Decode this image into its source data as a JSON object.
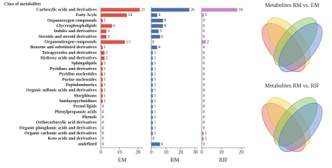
{
  "chart_data": {
    "type": "bar",
    "orientation": "horizontal",
    "legend_title": "Class of metabolites",
    "categories": [
      "Carboxylic acids and derivatives",
      "Fatty Acyls",
      "Organooxygen compounds",
      "Glycerophospholipids",
      "Indoles and derivatives",
      "Steroids and steroid derivatives",
      "Organonitrogen compounds",
      "Benzene and substituted derivatives",
      "Tetrapyrroles and derivatives",
      "Hydroxy acids and derivatives",
      "Sphingolipids",
      "Pyridines and derivatives",
      "Pyridine nucleotides",
      "Purine nucleosides",
      "Peptidomimetics",
      "Organic sulfonic acids and derivatives",
      "Morphinans",
      "Imidazopyrimidines",
      "Prenol lipids",
      "Phenylpropanoic acids",
      "Phenols",
      "Orthocarboxylic acid derivatives",
      "Organic phosphonic acids and derivatives",
      "Organic carbonic acids and derivatives",
      "Keto acids and derivatives",
      "undefined"
    ],
    "series": [
      {
        "name": "EM",
        "color": "#d9534f",
        "xlim": [
          0,
          23
        ],
        "xticks": [
          0,
          10,
          20
        ],
        "values": [
          21,
          14,
          1,
          6,
          3,
          3,
          13,
          1,
          2,
          2,
          1,
          1,
          1,
          1,
          1,
          1,
          1,
          1,
          0,
          0,
          0,
          0,
          0,
          0,
          0,
          0
        ]
      },
      {
        "name": "RM",
        "color": "#4a6fa5",
        "xlim": [
          0,
          32
        ],
        "xticks": [
          0,
          10,
          20,
          30
        ],
        "values": [
          26,
          4,
          8,
          8,
          5,
          6,
          0,
          4,
          1,
          1,
          1,
          1,
          1,
          1,
          1,
          1,
          1,
          1,
          1,
          1,
          1,
          1,
          1,
          1,
          0,
          6
        ]
      },
      {
        "name": "RIF",
        "color": "#c48bc3",
        "xlim": [
          0,
          22
        ],
        "xticks": [
          0,
          10,
          20
        ],
        "values": [
          18,
          1,
          0,
          0,
          0,
          0,
          2,
          0,
          0,
          0,
          0,
          0,
          0,
          0,
          0,
          0,
          0,
          0,
          0,
          0,
          0,
          0,
          0,
          1,
          1,
          0
        ]
      }
    ]
  },
  "venn": [
    {
      "title": "Metabolites RM vs. EM"
    },
    {
      "title": "Metabolites RM vs. RIF"
    }
  ]
}
